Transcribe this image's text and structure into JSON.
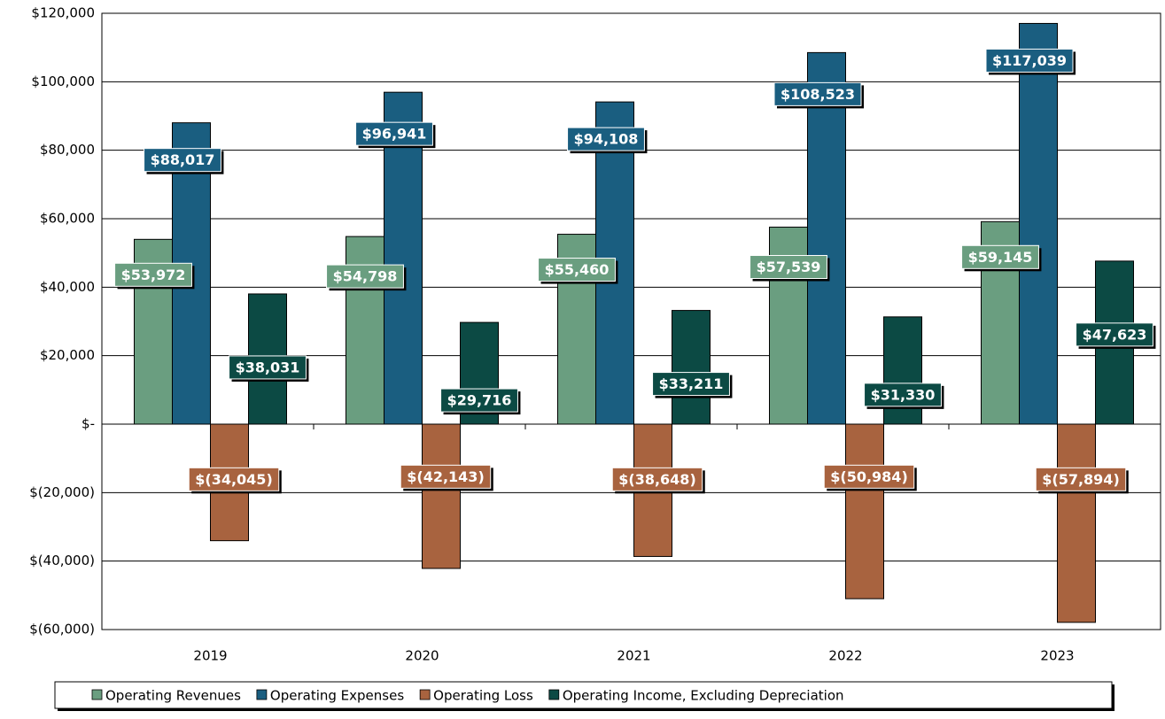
{
  "chart_data": {
    "type": "bar",
    "categories": [
      "2019",
      "2020",
      "2021",
      "2022",
      "2023"
    ],
    "series": [
      {
        "name": "Operating Revenues",
        "color": "#6a9e80",
        "values": [
          53972,
          54798,
          55460,
          57539,
          59145
        ],
        "value_labels": [
          "$53,972",
          "$54,798",
          "$55,460",
          "$57,539",
          "$59,145"
        ]
      },
      {
        "name": "Operating Expenses",
        "color": "#1a5e80",
        "values": [
          88017,
          96941,
          94108,
          108523,
          117039
        ],
        "value_labels": [
          "$88,017",
          "$96,941",
          "$94,108",
          "$108,523",
          "$117,039"
        ]
      },
      {
        "name": "Operating Loss",
        "color": "#a8633f",
        "values": [
          -34045,
          -42143,
          -38648,
          -50984,
          -57894
        ],
        "value_labels": [
          "$(34,045)",
          "$(42,143)",
          "$(38,648)",
          "$(50,984)",
          "$(57,894)"
        ]
      },
      {
        "name": "Operating Income, Excluding Depreciation",
        "color": "#0c4a44",
        "values": [
          38031,
          29716,
          33211,
          31330,
          47623
        ],
        "value_labels": [
          "$38,031",
          "$29,716",
          "$33,211",
          "$31,330",
          "$47,623"
        ]
      }
    ],
    "ylim": [
      -60000,
      120000
    ],
    "yticks": [
      {
        "value": -60000,
        "label": "$(60,000)"
      },
      {
        "value": -40000,
        "label": "$(40,000)"
      },
      {
        "value": -20000,
        "label": "$(20,000)"
      },
      {
        "value": 0,
        "label": "$-"
      },
      {
        "value": 20000,
        "label": "$20,000"
      },
      {
        "value": 40000,
        "label": "$40,000"
      },
      {
        "value": 60000,
        "label": "$60,000"
      },
      {
        "value": 80000,
        "label": "$80,000"
      },
      {
        "value": 100000,
        "label": "$100,000"
      },
      {
        "value": 120000,
        "label": "$120,000"
      }
    ],
    "grid": true,
    "legend": "bottom"
  }
}
